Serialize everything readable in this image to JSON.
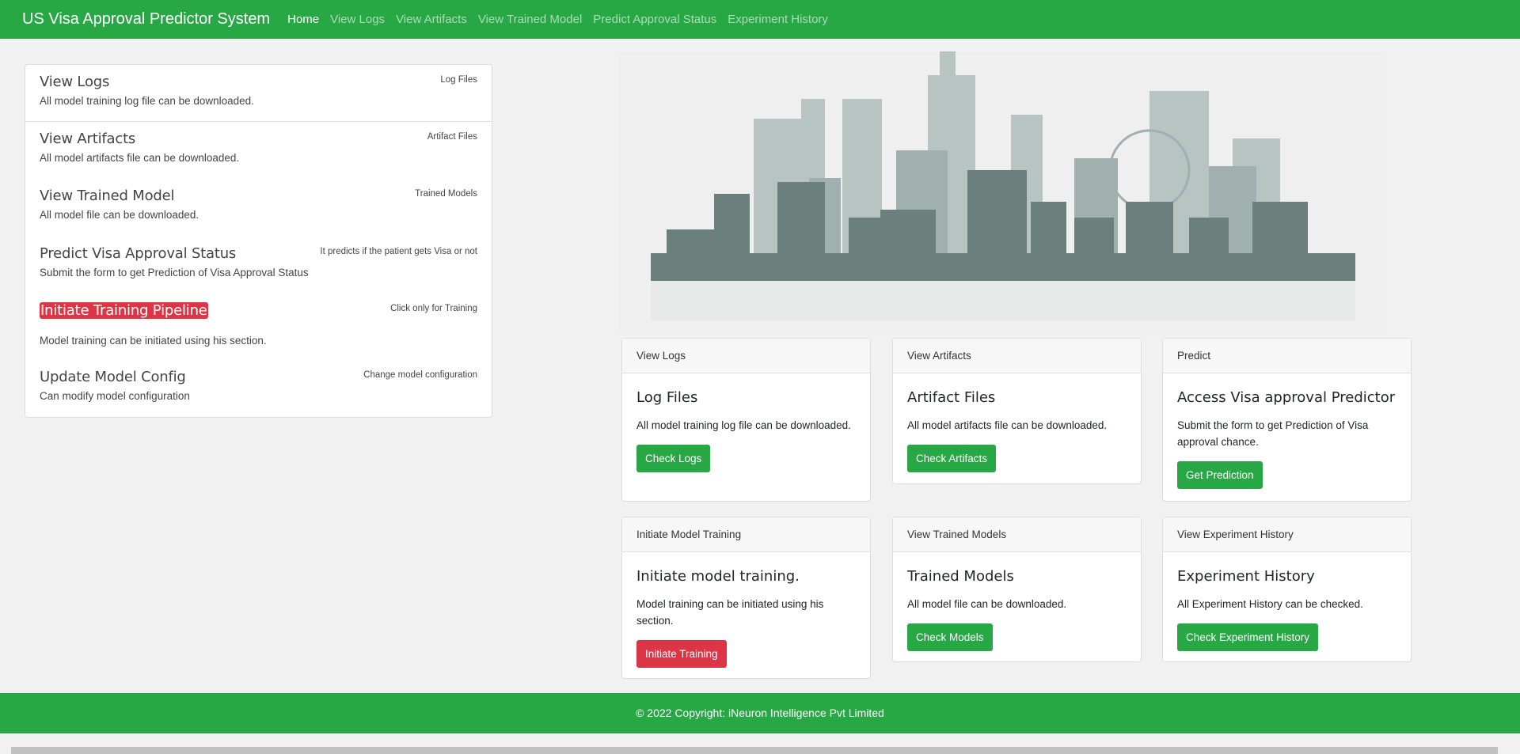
{
  "nav": {
    "brand": "US Visa Approval Predictor System",
    "links": [
      "Home",
      "View Logs",
      "View Artifacts",
      "View Trained Model",
      "Predict Approval Status",
      "Experiment History"
    ]
  },
  "list": [
    {
      "title": "View Logs",
      "desc": "All model training log file can be downloaded.",
      "note": "Log Files"
    },
    {
      "title": "View Artifacts",
      "desc": "All model artifacts file can be downloaded.",
      "note": "Artifact Files"
    },
    {
      "title": "View Trained Model",
      "desc": "All model file can be downloaded.",
      "note": "Trained Models"
    },
    {
      "title": "Predict Visa Approval Status",
      "desc": "Submit the form to get Prediction of Visa Approval Status",
      "note": "It predicts if the patient gets Visa or not"
    },
    {
      "title": "Initiate Training Pipeline",
      "desc": "Model training can be initiated using his section.",
      "note": "Click only for Training"
    },
    {
      "title": "Update Model Config",
      "desc": "Can modify model configuration",
      "note": "Change model configuration"
    }
  ],
  "cards": [
    {
      "header": "View Logs",
      "title": "Log Files",
      "text": "All model training log file can be downloaded.",
      "button": "Check Logs"
    },
    {
      "header": "View Artifacts",
      "title": "Artifact Files",
      "text": "All model artifacts file can be downloaded.",
      "button": "Check Artifacts"
    },
    {
      "header": "Predict",
      "title": "Access Visa approval Predictor",
      "text": "Submit the form to get Prediction of Visa approval chance.",
      "button": "Get Prediction"
    },
    {
      "header": "Initiate Model Training",
      "title": "Initiate model training.",
      "text": "Model training can be initiated using his section.",
      "button": "Initiate Training"
    },
    {
      "header": "View Trained Models",
      "title": "Trained Models",
      "text": "All model file can be downloaded.",
      "button": "Check Models"
    },
    {
      "header": "View Experiment History",
      "title": "Experiment History",
      "text": "All Experiment History can be checked.",
      "button": "Check Experiment History"
    }
  ],
  "footer": "© 2022 Copyright: iNeuron Intelligence Pvt Limited",
  "colors": {
    "primary": "#28a745",
    "danger": "#dc3545"
  }
}
